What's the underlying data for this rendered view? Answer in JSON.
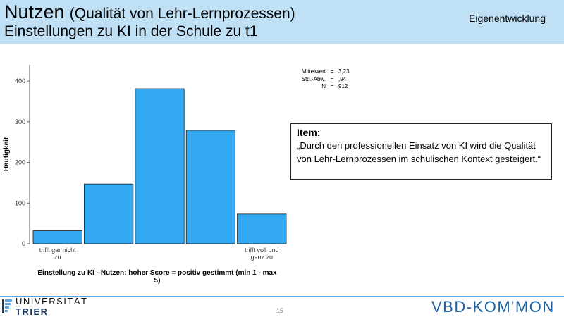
{
  "header": {
    "title_main": "Nutzen",
    "title_sub": "(Qualität von Lehr-Lernprozessen)",
    "subtitle": "Einstellungen zu KI in der Schule zu t1",
    "source": "Eigenentwicklung"
  },
  "chart_data": {
    "type": "bar",
    "categories": [
      "trifft gar nicht zu",
      "",
      "",
      "",
      "trifft voll und ganz zu"
    ],
    "values": [
      32,
      147,
      381,
      279,
      73
    ],
    "title": "",
    "xlabel": "Einstellung zu KI - Nutzen; hoher Score = positiv gestimmt (min 1 - max 5)",
    "ylabel": "Häufigkeit",
    "ylim": [
      0,
      440
    ],
    "yticks": [
      0,
      100,
      200,
      300,
      400
    ],
    "bar_color": "#33a9f2",
    "grid": false
  },
  "stats": {
    "mean_label": "Mittelwert",
    "mean_value": "3,23",
    "sd_label": "Std.-Abw.",
    "sd_value": ",94",
    "n_label": "N",
    "n_value": "912",
    "eq": "="
  },
  "item": {
    "heading": "Item:",
    "text": "„Durch den professionellen Einsatz von KI wird die Qualität von Lehr-Lernprozessen im schulischen Kontext gesteigert.“"
  },
  "footer": {
    "university_line1": "UNIVERSITÄT",
    "university_line2": "TRIER",
    "page_number": "15",
    "brand": "VBD-KOM'MON",
    "accent_color": "#5ba5dd"
  }
}
